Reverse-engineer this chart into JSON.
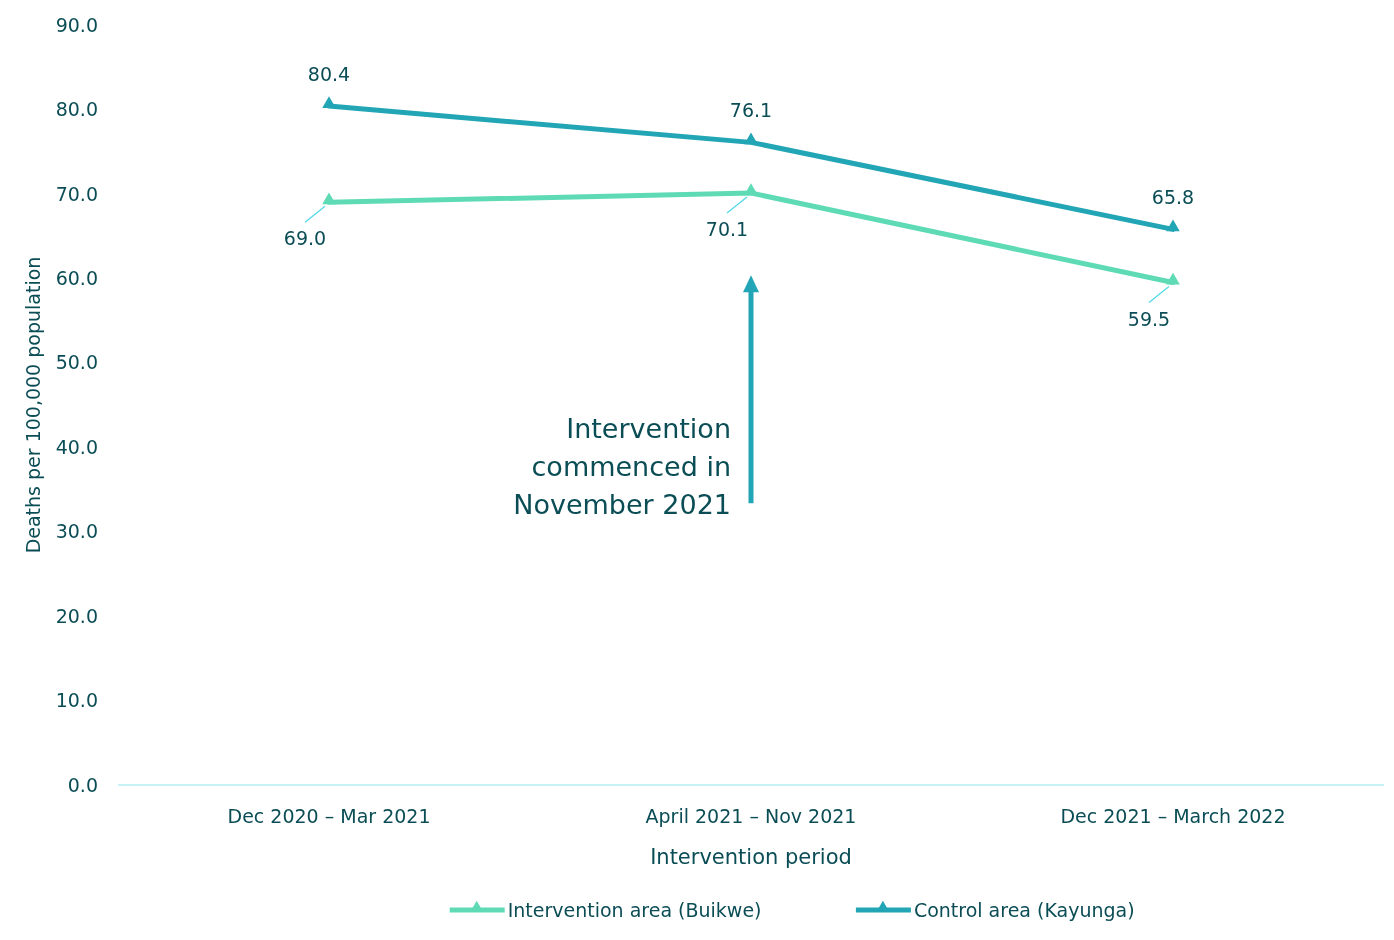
{
  "chart_data": {
    "type": "line",
    "xlabel": "Intervention period",
    "ylabel": "Deaths per 100,000 population",
    "categories": [
      "Dec 2020 – Mar 2021",
      "April 2021 – Nov 2021",
      "Dec 2021 – March 2022"
    ],
    "series": [
      {
        "name": "Intervention area (Buikwe)",
        "color": "#5edbb5",
        "values": [
          69.0,
          70.1,
          59.5
        ],
        "value_labels": [
          "69.0",
          "70.1",
          "59.5"
        ]
      },
      {
        "name": "Control area (Kayunga)",
        "color": "#22a5b5",
        "values": [
          80.4,
          76.1,
          65.8
        ],
        "value_labels": [
          "80.4",
          "76.1",
          "65.8"
        ]
      }
    ],
    "ylim": [
      0,
      90
    ],
    "yticks": [
      {
        "value": 0,
        "label": "0.0"
      },
      {
        "value": 10,
        "label": "10.0"
      },
      {
        "value": 20,
        "label": "20.0"
      },
      {
        "value": 30,
        "label": "30.0"
      },
      {
        "value": 40,
        "label": "40.0"
      },
      {
        "value": 50,
        "label": "50.0"
      },
      {
        "value": 60,
        "label": "60.0"
      },
      {
        "value": 70,
        "label": "70.0"
      },
      {
        "value": 80,
        "label": "80.0"
      },
      {
        "value": 90,
        "label": "90.0"
      }
    ],
    "annotations": [
      "Intervention\ncommenced in\nNovember 2021"
    ],
    "marker": "triangle",
    "line_style": "solid",
    "grid": false,
    "legend": "bottom"
  }
}
